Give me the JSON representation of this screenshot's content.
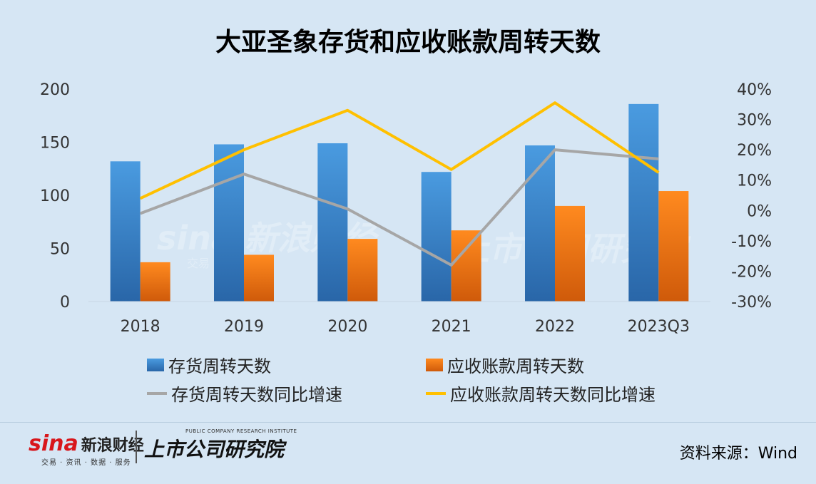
{
  "title": "大亚圣象存货和应收账款周转天数",
  "chart_data": {
    "type": "bar+line",
    "categories": [
      "2018",
      "2019",
      "2020",
      "2021",
      "2022",
      "2023Q3"
    ],
    "left_axis": {
      "ticks": [
        "0",
        "50",
        "100",
        "150",
        "200"
      ],
      "range": [
        0,
        200
      ]
    },
    "right_axis": {
      "ticks": [
        "40%",
        "30%",
        "20%",
        "10%",
        "0%",
        "-10%",
        "-20%",
        "-30%"
      ],
      "range": [
        -30,
        40
      ]
    },
    "bar_series": [
      {
        "name": "存货周转天数",
        "values": [
          132,
          148,
          149,
          122,
          147,
          186
        ],
        "color": "#3f8fd6",
        "color_dark": "#2a6bb0"
      },
      {
        "name": "应收账款周转天数",
        "values": [
          37,
          44,
          59,
          67,
          90,
          104
        ],
        "color": "#ff7f16",
        "color_dark": "#d8600a"
      }
    ],
    "line_series": [
      {
        "name": "存货周转天数同比增速",
        "values": [
          -1,
          12,
          0.5,
          -18,
          20,
          17
        ],
        "color": "#a6a6a6"
      },
      {
        "name": "应收账款周转天数同比增速",
        "values": [
          4,
          20,
          33,
          13.5,
          35.5,
          12.5
        ],
        "color": "#ffc000"
      }
    ]
  },
  "watermark": {
    "brand": "sina 新浪财经",
    "sub": "交易 · 数据",
    "research": "上市公司研究院"
  },
  "footer": {
    "sina_brand": "sina",
    "sina_cn": "新浪财经",
    "sina_sub": "交易 · 资讯 · 数据 · 服务",
    "research_sub": "PUBLIC COMPANY RESEARCH INSTITUTE",
    "research_name": "上市公司研究院",
    "source": "资料来源：Wind"
  }
}
